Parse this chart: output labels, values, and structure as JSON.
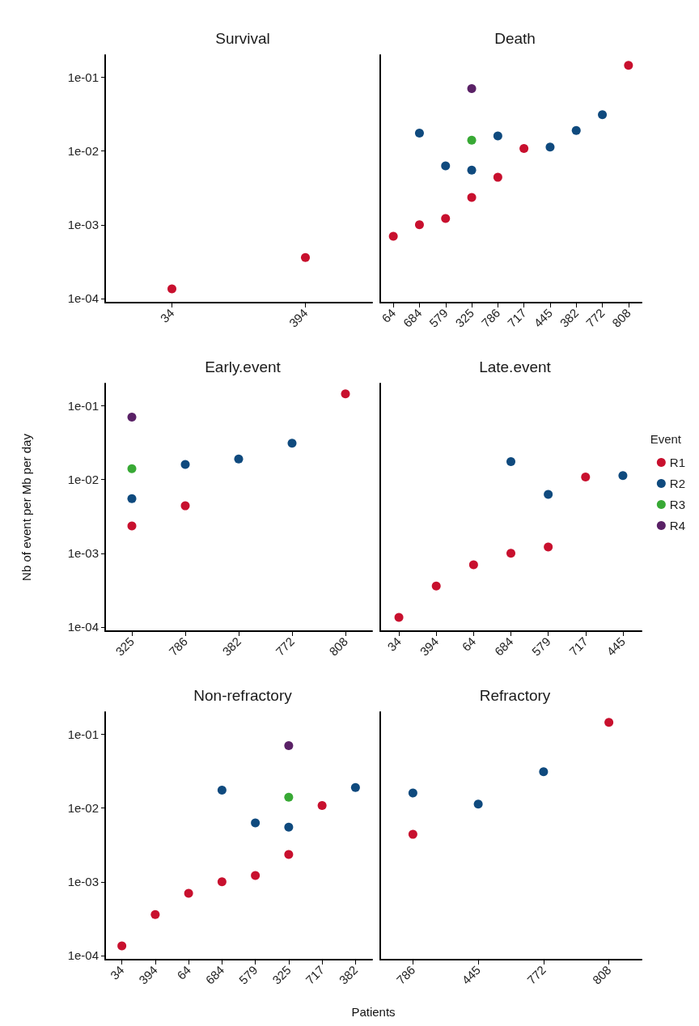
{
  "chart_data": [
    {
      "type": "scatter",
      "title": "Survival",
      "categories": [
        "34",
        "394"
      ],
      "log": "y",
      "ylim": [
        8.8e-05,
        0.2
      ],
      "yticks": [
        {
          "value": 0.0001,
          "label": "1e-04"
        },
        {
          "value": 0.001,
          "label": "1e-03"
        },
        {
          "value": 0.01,
          "label": "1e-02"
        },
        {
          "value": 0.1,
          "label": "1e-01"
        }
      ],
      "marker": "circle",
      "grid": false,
      "series": [
        {
          "color": "#c8102e",
          "values": [
            0.000135,
            0.00036
          ]
        }
      ]
    },
    {
      "type": "scatter",
      "title": "Death",
      "categories": [
        "64",
        "684",
        "579",
        "325",
        "786",
        "717",
        "445",
        "382",
        "772",
        "808"
      ],
      "log": "y",
      "ylim": [
        8.8e-05,
        0.2
      ],
      "tick_labels": "x",
      "marker": "circle",
      "grid": false,
      "series": [
        {
          "color": "#c8102e",
          "values": [
            0.0007,
            0.001,
            0.00122,
            0.00235,
            0.0044,
            0.0108,
            null,
            null,
            null,
            0.145
          ]
        },
        {
          "color": "#0f4a7e",
          "values": [
            null,
            0.0175,
            0.0063,
            0.0055,
            0.016,
            null,
            0.0113,
            0.019,
            0.031,
            null
          ]
        },
        {
          "color": "#38a935",
          "values": [
            null,
            null,
            null,
            0.014,
            null,
            null,
            null,
            null,
            null,
            null
          ]
        },
        {
          "color": "#5a2166",
          "values": [
            null,
            null,
            null,
            0.07,
            null,
            null,
            null,
            null,
            null,
            null
          ]
        }
      ]
    },
    {
      "type": "scatter",
      "title": "Early.event",
      "ylabel": "Nb of event per Mb per day",
      "categories": [
        "325",
        "786",
        "382",
        "772",
        "808"
      ],
      "log": "y",
      "ylim": [
        8.8e-05,
        0.2
      ],
      "yticks": [
        {
          "value": 0.0001,
          "label": "1e-04"
        },
        {
          "value": 0.001,
          "label": "1e-03"
        },
        {
          "value": 0.01,
          "label": "1e-02"
        },
        {
          "value": 0.1,
          "label": "1e-01"
        }
      ],
      "marker": "circle",
      "grid": false,
      "series": [
        {
          "color": "#c8102e",
          "values": [
            0.00235,
            0.0044,
            null,
            null,
            0.145
          ]
        },
        {
          "color": "#0f4a7e",
          "values": [
            0.0055,
            0.016,
            0.019,
            0.031,
            null
          ]
        },
        {
          "color": "#38a935",
          "values": [
            0.014,
            null,
            null,
            null,
            null
          ]
        },
        {
          "color": "#5a2166",
          "values": [
            0.07,
            null,
            null,
            null,
            null
          ]
        }
      ]
    },
    {
      "type": "scatter",
      "title": "Late.event",
      "categories": [
        "34",
        "394",
        "64",
        "684",
        "579",
        "717",
        "445"
      ],
      "log": "y",
      "ylim": [
        8.8e-05,
        0.2
      ],
      "tick_labels": "x",
      "marker": "circle",
      "grid": false,
      "legend": "right",
      "legend_title": "Event",
      "series": [
        {
          "name": "R1",
          "color": "#c8102e",
          "values": [
            0.000135,
            0.00036,
            0.0007,
            0.001,
            0.00122,
            0.0108,
            null
          ]
        },
        {
          "name": "R2",
          "color": "#0f4a7e",
          "values": [
            null,
            null,
            null,
            0.0175,
            0.0063,
            null,
            0.0113
          ]
        },
        {
          "name": "R3",
          "color": "#38a935",
          "values": [
            null,
            null,
            null,
            null,
            null,
            null,
            null
          ]
        },
        {
          "name": "R4",
          "color": "#5a2166",
          "values": [
            null,
            null,
            null,
            null,
            null,
            null,
            null
          ]
        }
      ]
    },
    {
      "type": "scatter",
      "title": "Non-refractory",
      "xlabel": "Patients",
      "categories": [
        "34",
        "394",
        "64",
        "684",
        "579",
        "325",
        "717",
        "382"
      ],
      "log": "y",
      "ylim": [
        8.8e-05,
        0.2
      ],
      "yticks": [
        {
          "value": 0.0001,
          "label": "1e-04"
        },
        {
          "value": 0.001,
          "label": "1e-03"
        },
        {
          "value": 0.01,
          "label": "1e-02"
        },
        {
          "value": 0.1,
          "label": "1e-01"
        }
      ],
      "marker": "circle",
      "grid": false,
      "series": [
        {
          "color": "#c8102e",
          "values": [
            0.000135,
            0.00036,
            0.0007,
            0.001,
            0.00122,
            0.00235,
            0.0108,
            null
          ]
        },
        {
          "color": "#0f4a7e",
          "values": [
            null,
            null,
            null,
            0.0175,
            0.0063,
            0.0055,
            null,
            0.019
          ]
        },
        {
          "color": "#38a935",
          "values": [
            null,
            null,
            null,
            null,
            null,
            0.014,
            null,
            null
          ]
        },
        {
          "color": "#5a2166",
          "values": [
            null,
            null,
            null,
            null,
            null,
            0.07,
            null,
            null
          ]
        }
      ]
    },
    {
      "type": "scatter",
      "title": "Refractory",
      "categories": [
        "786",
        "445",
        "772",
        "808"
      ],
      "log": "y",
      "ylim": [
        8.8e-05,
        0.2
      ],
      "tick_labels": "x",
      "marker": "circle",
      "grid": false,
      "series": [
        {
          "color": "#c8102e",
          "values": [
            0.0044,
            null,
            null,
            0.145
          ]
        },
        {
          "color": "#0f4a7e",
          "values": [
            0.016,
            0.0113,
            0.031,
            null
          ]
        }
      ]
    }
  ]
}
